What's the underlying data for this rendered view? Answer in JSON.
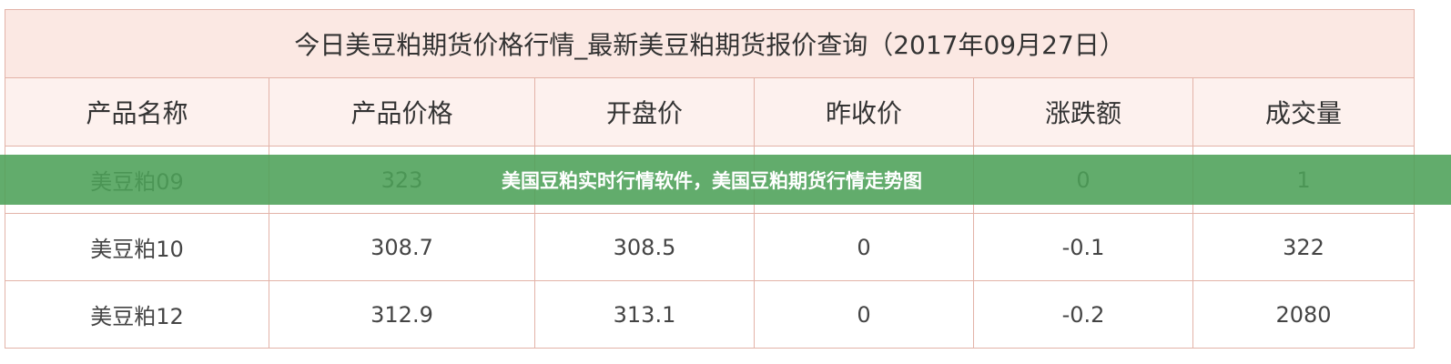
{
  "table": {
    "title": "今日美豆粕期货价格行情_最新美豆粕期货报价查询（2017年09月27日）",
    "header": [
      "产品名称",
      "产品价格",
      "开盘价",
      "昨收价",
      "涨跌额",
      "成交量"
    ],
    "rows": [
      [
        "美豆粕09",
        "323",
        null,
        null,
        "0",
        "1"
      ],
      [
        "美豆粕10",
        "308.7",
        "308.5",
        "0",
        "-0.1",
        "322"
      ],
      [
        "美豆粕12",
        "312.9",
        "313.1",
        "0",
        "-0.2",
        "2080"
      ]
    ]
  },
  "banner": {
    "text": "美国豆粕实时行情软件，美国豆粕期货行情走势图"
  }
}
